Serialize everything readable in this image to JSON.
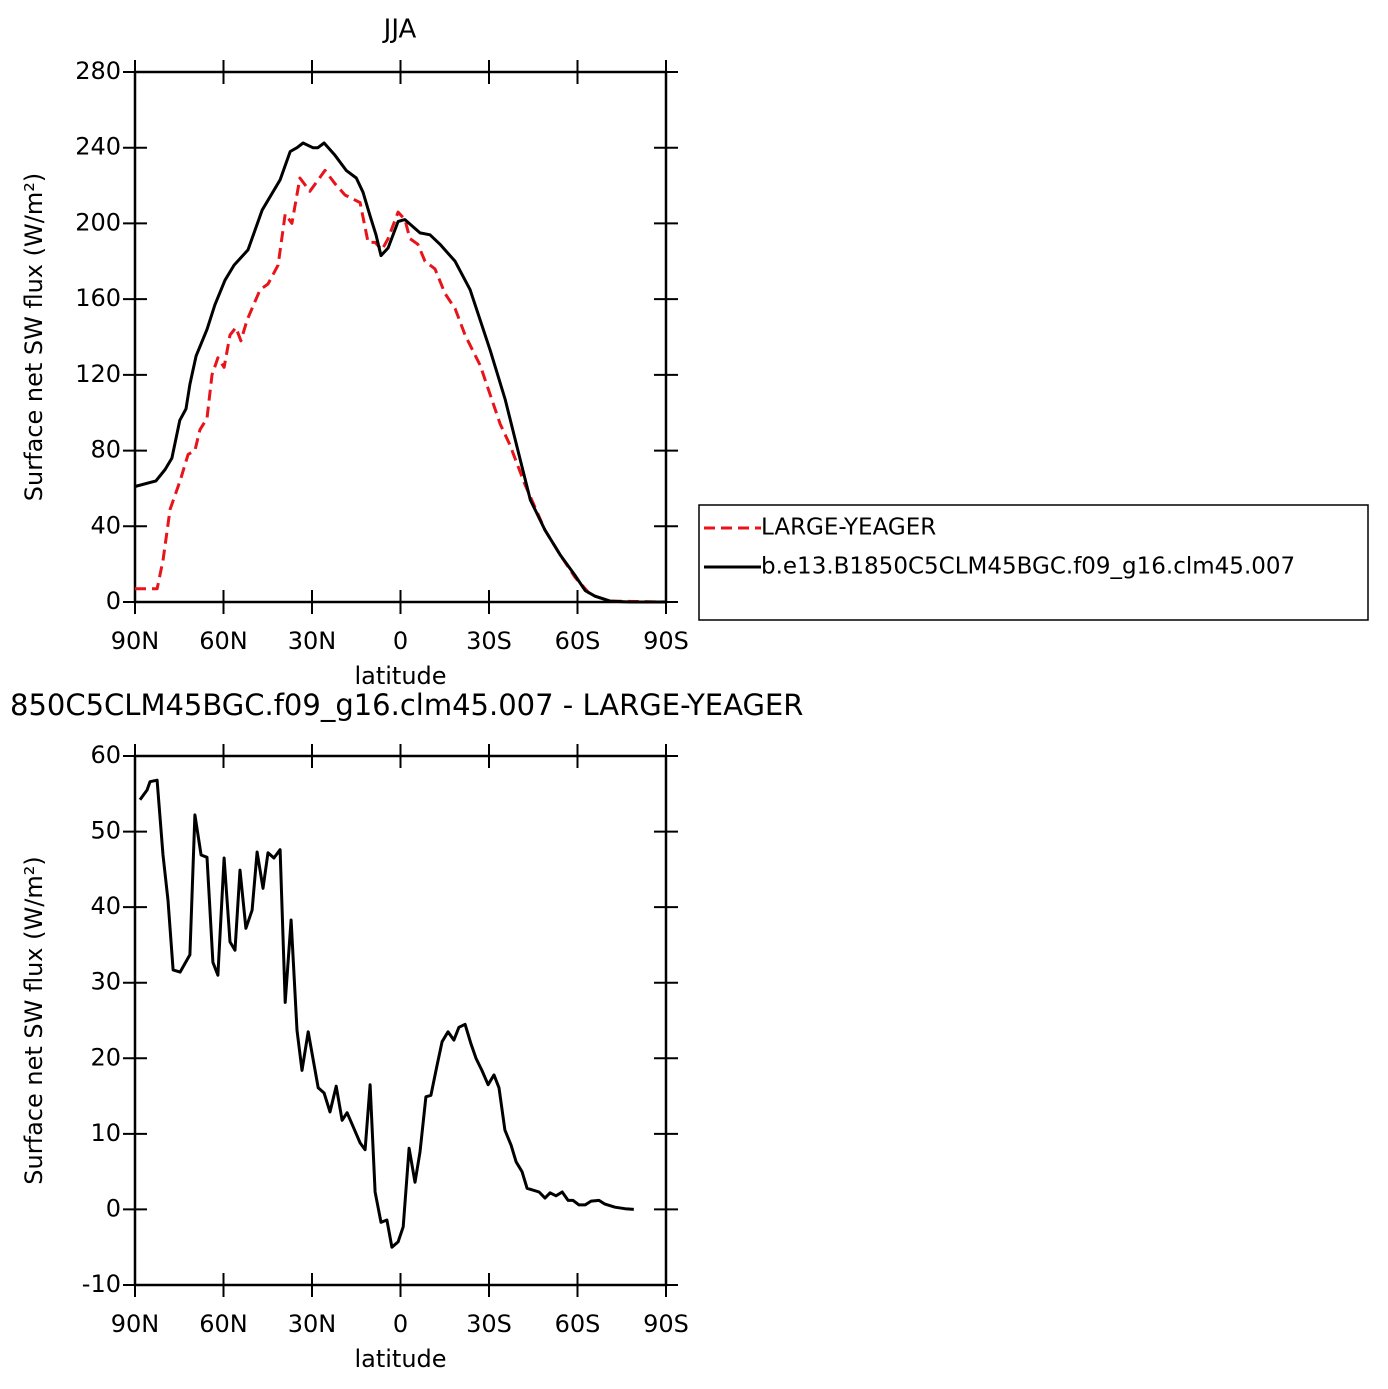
{
  "chart_data": [
    {
      "type": "line",
      "title": "JJA",
      "xlabel": "latitude",
      "ylabel": "Surface net SW flux (W/m²)",
      "xlim": [
        90,
        -90
      ],
      "xticks": [
        {
          "value": 90,
          "label": "90N"
        },
        {
          "value": 60,
          "label": "60N"
        },
        {
          "value": 30,
          "label": "30N"
        },
        0,
        {
          "value": -30,
          "label": "30S"
        },
        {
          "value": -60,
          "label": "60S"
        },
        {
          "value": -90,
          "label": "90S"
        }
      ],
      "ylim": [
        0,
        280
      ],
      "yticks": [
        0,
        40,
        80,
        120,
        160,
        200,
        240,
        280
      ],
      "legend": "right",
      "series": [
        {
          "name": "LARGE-YEAGER",
          "color": "#e8141a",
          "dashed": true,
          "x": [
            90,
            84.9,
            82.5,
            80.5,
            78.1,
            74.7,
            72.0,
            69.7,
            68.0,
            65.6,
            63.9,
            61.9,
            59.8,
            57.8,
            55.8,
            54.1,
            52.0,
            47.6,
            44.9,
            41.5,
            39.1,
            36.8,
            34.1,
            30.7,
            25.6,
            22.2,
            18.8,
            13.7,
            11.0,
            8.6,
            6.3,
            4.2,
            0.8,
            -1.5,
            -3.2,
            -5.9,
            -8.3,
            -11.7,
            -15.1,
            -18.5,
            -21.9,
            -27.0,
            -33.8,
            -37.1,
            -42.2,
            -49.0,
            -54.1,
            -59.2,
            -64.3,
            -71.1,
            -90
          ],
          "values": [
            7,
            7,
            7,
            22,
            49,
            64,
            78,
            80,
            91,
            97,
            120,
            129,
            124,
            141,
            145,
            138,
            149,
            165,
            168,
            178,
            205,
            200,
            224,
            217,
            228,
            221,
            215,
            211,
            190,
            190,
            186,
            192,
            206,
            202,
            192,
            189,
            180,
            176,
            163,
            155,
            141,
            125,
            94,
            83,
            62,
            38,
            25,
            13,
            4,
            0.5,
            0
          ]
        },
        {
          "name": "b.e13.B1850C5CLM45BGC.f09_g16.clm45.007",
          "color": "#000000",
          "dashed": false,
          "x": [
            90,
            82.9,
            79.8,
            77.5,
            74.8,
            72.7,
            71.4,
            69.3,
            65.6,
            62.9,
            59.5,
            56.4,
            51.7,
            46.9,
            40.8,
            37.4,
            35.1,
            33.0,
            29.7,
            28.0,
            25.9,
            22.2,
            18.4,
            15.0,
            12.7,
            10.3,
            8.3,
            6.6,
            4.2,
            0.8,
            -1.5,
            -6.6,
            -10.0,
            -13.4,
            -18.5,
            -23.6,
            -30.4,
            -35.5,
            -40.6,
            -44.0,
            -49.0,
            -54.1,
            -59.2,
            -62.6,
            -66.0,
            -71.1,
            -77.8,
            -90
          ],
          "values": [
            61,
            64,
            70,
            76,
            96,
            102,
            115,
            130,
            144,
            157,
            170,
            178,
            186,
            207,
            223,
            238,
            240,
            242.5,
            240,
            240,
            242.5,
            236,
            228,
            224,
            216.5,
            204,
            194,
            183,
            187,
            201,
            202,
            195,
            194,
            189,
            180,
            165,
            133,
            107,
            75,
            54,
            38,
            25,
            14,
            6,
            3,
            0.5,
            0,
            0
          ]
        }
      ]
    },
    {
      "type": "line",
      "title": "850C5CLM45BGC.f09_g16.clm45.007 - LARGE-YEAGER",
      "xlabel": "latitude",
      "ylabel": "Surface net SW flux (W/m²)",
      "xlim": [
        90,
        -90
      ],
      "xticks": [
        {
          "value": 90,
          "label": "90N"
        },
        {
          "value": 60,
          "label": "60N"
        },
        {
          "value": 30,
          "label": "30N"
        },
        0,
        {
          "value": -30,
          "label": "30S"
        },
        {
          "value": -60,
          "label": "60S"
        },
        {
          "value": -90,
          "label": "90S"
        }
      ],
      "ylim": [
        -10,
        60
      ],
      "yticks": [
        -10,
        0,
        10,
        20,
        30,
        40,
        50,
        60
      ],
      "series": [
        {
          "color": "#000000",
          "dashed": false,
          "x": [
            88.3,
            85.9,
            84.9,
            82.5,
            80.5,
            78.8,
            77.1,
            74.7,
            71.4,
            69.7,
            67.6,
            65.6,
            63.6,
            61.9,
            59.8,
            57.8,
            56.1,
            54.4,
            52.4,
            50.3,
            48.6,
            46.6,
            44.9,
            42.9,
            40.8,
            39.1,
            37.1,
            35.1,
            33.4,
            31.3,
            27.9,
            25.9,
            23.9,
            21.8,
            19.8,
            18.1,
            16.1,
            13.7,
            12.0,
            10.3,
            8.6,
            6.6,
            4.6,
            2.9,
            0.8,
            -0.9,
            -2.9,
            -4.9,
            -6.6,
            -8.6,
            -10.3,
            -12.4,
            -14.1,
            -16.1,
            -18.1,
            -19.8,
            -21.9,
            -23.9,
            -25.6,
            -27.6,
            -29.7,
            -31.7,
            -33.4,
            -35.4,
            -37.5,
            -39.2,
            -41.2,
            -42.9,
            -47.0,
            -49.0,
            -50.7,
            -52.7,
            -54.8,
            -56.8,
            -58.5,
            -60.5,
            -62.6,
            -64.6,
            -67.3,
            -69.3,
            -72.7,
            -76.1,
            -79.1
          ],
          "values": [
            54.2,
            55.5,
            56.6,
            56.8,
            46.9,
            40.9,
            31.7,
            31.4,
            33.7,
            52.2,
            46.9,
            46.6,
            32.7,
            31,
            46.5,
            35.4,
            34.3,
            44.9,
            37.2,
            39.6,
            47.3,
            42.5,
            47.2,
            46.5,
            47.6,
            27.4,
            38.3,
            23.7,
            18.4,
            23.5,
            16.1,
            15.4,
            12.9,
            16.3,
            11.8,
            12.8,
            11,
            8.8,
            7.9,
            16.5,
            2.3,
            -1.7,
            -1.4,
            -5,
            -4.3,
            -2.3,
            8.1,
            3.6,
            7.6,
            14.9,
            15.1,
            19.1,
            22.2,
            23.5,
            22.4,
            24.1,
            24.5,
            21.9,
            20,
            18.4,
            16.5,
            17.8,
            16.1,
            10.5,
            8.5,
            6.3,
            5,
            2.8,
            2.3,
            1.5,
            2.2,
            1.8,
            2.3,
            1.2,
            1.2,
            0.6,
            0.6,
            1.1,
            1.2,
            0.7,
            0.3,
            0.1,
            0
          ]
        }
      ]
    }
  ]
}
